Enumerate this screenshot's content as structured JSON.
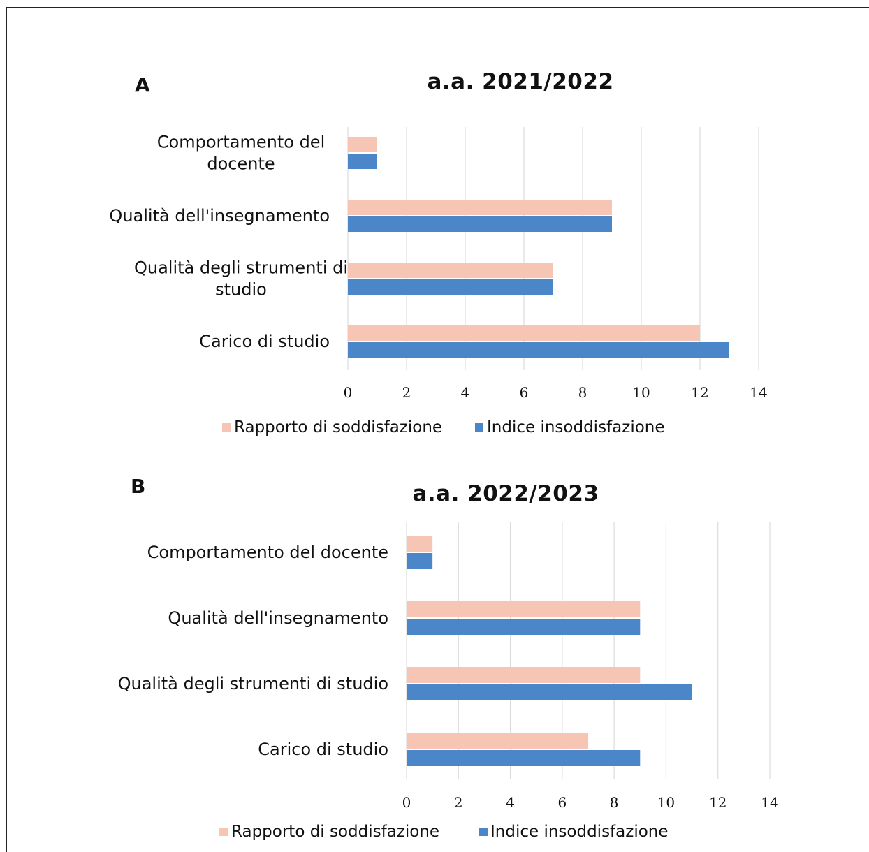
{
  "colors": {
    "satisfaction": "#f6c5b3",
    "dissatisfaction": "#4a86c8"
  },
  "chart_data": [
    {
      "panel": "A",
      "type": "bar",
      "orientation": "horizontal",
      "title": "a.a. 2021/2022",
      "categories": [
        [
          "Comportamento del",
          "docente"
        ],
        [
          "Qualità dell'insegnamento"
        ],
        [
          "Qualità degli strumenti di",
          "studio"
        ],
        [
          "Carico di studio"
        ]
      ],
      "series": [
        {
          "name": "Rapporto di soddisfazione",
          "values": [
            1,
            9,
            7,
            12
          ]
        },
        {
          "name": "Indice insoddisfazione",
          "values": [
            1,
            9,
            7,
            13
          ]
        }
      ],
      "xlim": [
        0,
        14
      ],
      "ticks": [
        0,
        2,
        4,
        6,
        8,
        10,
        12,
        14
      ],
      "grid": true,
      "legend": "bottom"
    },
    {
      "panel": "B",
      "type": "bar",
      "orientation": "horizontal",
      "title": "a.a. 2022/2023",
      "categories": [
        [
          "Comportamento del docente"
        ],
        [
          "Qualità dell'insegnamento"
        ],
        [
          "Qualità degli strumenti di studio"
        ],
        [
          "Carico di studio"
        ]
      ],
      "series": [
        {
          "name": "Rapporto di soddisfazione",
          "values": [
            1,
            9,
            9,
            7
          ]
        },
        {
          "name": "Indice insoddisfazione",
          "values": [
            1,
            9,
            11,
            9
          ]
        }
      ],
      "xlim": [
        0,
        14
      ],
      "ticks": [
        0,
        2,
        4,
        6,
        8,
        10,
        12,
        14
      ],
      "grid": true,
      "legend": "bottom"
    }
  ]
}
